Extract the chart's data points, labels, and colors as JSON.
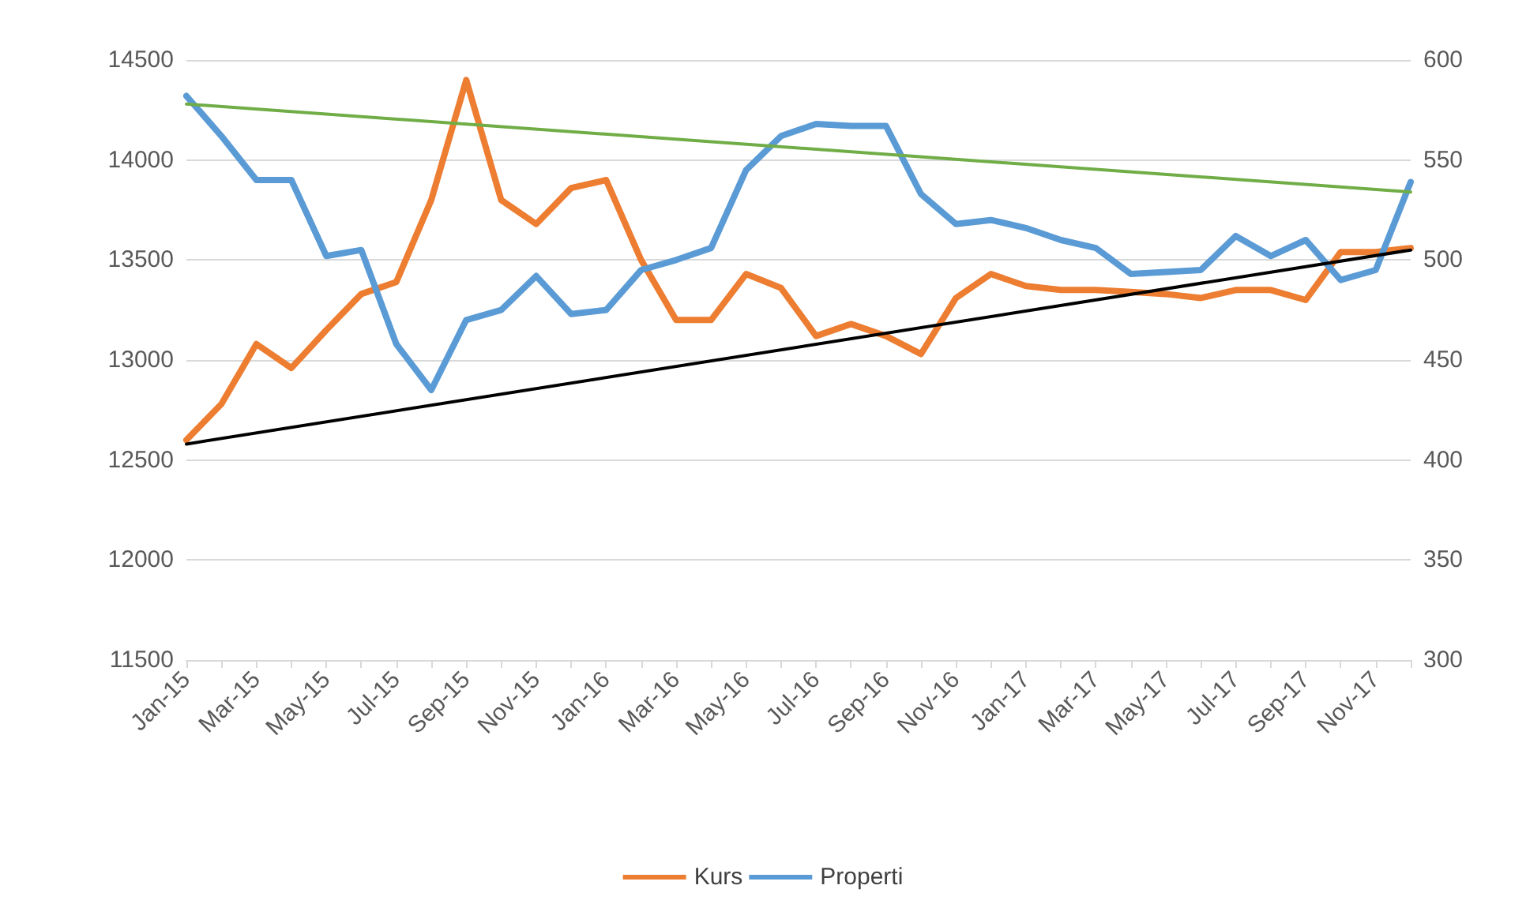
{
  "chart_data": {
    "type": "line",
    "categories": [
      "Jan-15",
      null,
      "Mar-15",
      null,
      "May-15",
      null,
      "Jul-15",
      null,
      "Sep-15",
      null,
      "Nov-15",
      null,
      "Jan-16",
      null,
      "Mar-16",
      null,
      "May-16",
      null,
      "Jul-16",
      null,
      "Sep-16",
      null,
      "Nov-16",
      null,
      "Jan-17",
      null,
      "Mar-17",
      null,
      "May-17",
      null,
      "Jul-17",
      null,
      "Sep-17",
      null,
      "Nov-17",
      null
    ],
    "series": [
      {
        "name": "Kurs",
        "color": "#ed7d31",
        "values": [
          12600,
          12780,
          13080,
          12960,
          13150,
          13330,
          13390,
          13800,
          14400,
          13800,
          13680,
          13860,
          13900,
          13500,
          13200,
          13200,
          13430,
          13360,
          13120,
          13180,
          13120,
          13030,
          13310,
          13430,
          13370,
          13350,
          13350,
          13340,
          13330,
          13310,
          13350,
          13350,
          13300,
          13540,
          13540,
          13560
        ]
      },
      {
        "name": "Properti",
        "color": "#5b9bd5",
        "axis": "y2",
        "values": [
          582,
          562,
          540,
          540,
          502,
          505,
          458,
          435,
          470,
          475,
          492,
          473,
          475,
          495,
          500,
          506,
          545,
          562,
          568,
          567,
          567,
          533,
          518,
          520,
          516,
          510,
          506,
          493,
          494,
          495,
          512,
          502,
          510,
          490,
          495,
          539
        ]
      },
      {
        "type": "line",
        "color": "#70ad47",
        "axis": "y2",
        "values": [
          578,
          null,
          null,
          null,
          null,
          null,
          null,
          null,
          null,
          null,
          null,
          null,
          null,
          null,
          null,
          null,
          null,
          null,
          null,
          null,
          null,
          null,
          null,
          null,
          null,
          null,
          null,
          null,
          null,
          null,
          null,
          null,
          null,
          null,
          null,
          534
        ]
      },
      {
        "type": "line",
        "color": "#000000",
        "values": [
          12580,
          null,
          null,
          null,
          null,
          null,
          null,
          null,
          null,
          null,
          null,
          null,
          null,
          null,
          null,
          null,
          null,
          null,
          null,
          null,
          null,
          null,
          null,
          null,
          null,
          null,
          null,
          null,
          null,
          null,
          null,
          null,
          null,
          null,
          null,
          13550
        ]
      }
    ],
    "ylim": [
      11500,
      14500
    ],
    "yticks": [
      11500,
      12000,
      12500,
      13000,
      13500,
      14000,
      14500
    ],
    "y2lim": [
      300,
      600
    ],
    "y2ticks": [
      300,
      350,
      400,
      450,
      500,
      550,
      600
    ],
    "grid": "y",
    "legend": "bottom",
    "marker": "none",
    "line_style": "solid"
  }
}
